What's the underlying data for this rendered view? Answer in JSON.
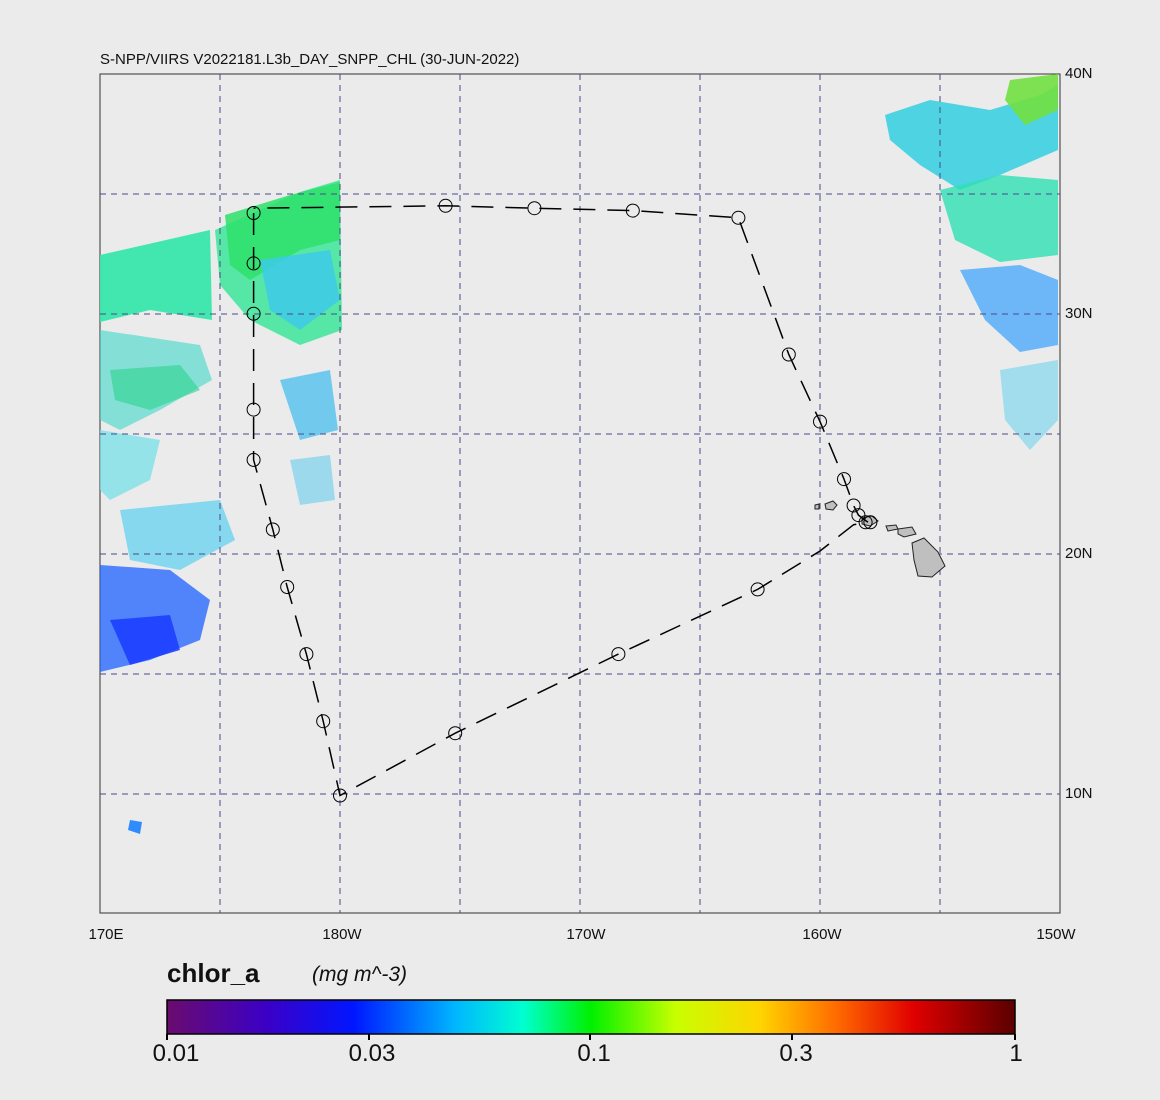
{
  "title": "S-NPP/VIIRS V2022181.L3b_DAY_SNPP_CHL (30-JUN-2022)",
  "lat_labels": [
    "40N",
    "30N",
    "20N",
    "10N"
  ],
  "lon_labels": [
    "170E",
    "180W",
    "170W",
    "160W",
    "150W"
  ],
  "colorbar": {
    "variable": "chlor_a",
    "units": "(mg m^-3)",
    "ticks": [
      "0.01",
      "0.03",
      "0.1",
      "0.3",
      "1"
    ],
    "colors": [
      "#6a0b6e",
      "#3a00c8",
      "#0016ff",
      "#00b6ff",
      "#00ffd0",
      "#00f000",
      "#c8ff00",
      "#ffd400",
      "#ff6a00",
      "#e00000",
      "#5a0000"
    ]
  },
  "map": {
    "background": "#ebebeb",
    "land_color": "#bfbfbf",
    "gridline_color": "#4a4a8a",
    "track_color": "#000000",
    "extent": {
      "lon_min": 170,
      "lon_max": 210,
      "lat_min": 5,
      "lat_max": 40
    },
    "track_stations": [
      [
        176.4,
        34.2
      ],
      [
        176.4,
        32.1
      ],
      [
        176.4,
        30.0
      ],
      [
        176.4,
        26.0
      ],
      [
        176.4,
        23.9
      ],
      [
        177.2,
        21.0
      ],
      [
        177.8,
        18.6
      ],
      [
        178.6,
        15.8
      ],
      [
        179.3,
        13.0
      ],
      [
        180.0,
        9.9
      ],
      [
        184.8,
        12.5
      ],
      [
        191.6,
        15.8
      ],
      [
        197.4,
        18.5
      ],
      [
        201.4,
        22.0
      ],
      [
        201.6,
        21.6
      ],
      [
        201.9,
        21.3
      ],
      [
        202.1,
        21.3
      ],
      [
        201.0,
        23.1
      ],
      [
        200.0,
        25.5
      ],
      [
        198.7,
        28.3
      ],
      [
        196.6,
        34.0
      ],
      [
        192.2,
        34.3
      ],
      [
        188.1,
        34.4
      ],
      [
        184.4,
        34.5
      ]
    ],
    "track_path": [
      [
        176.4,
        34.2
      ],
      [
        176.4,
        32.1
      ],
      [
        176.4,
        30.0
      ],
      [
        176.4,
        26.0
      ],
      [
        176.4,
        23.9
      ],
      [
        177.2,
        21.0
      ],
      [
        177.8,
        18.6
      ],
      [
        178.6,
        15.8
      ],
      [
        179.3,
        13.0
      ],
      [
        180.0,
        9.9
      ],
      [
        184.8,
        12.5
      ],
      [
        191.6,
        15.8
      ],
      [
        197.4,
        18.5
      ],
      [
        200.0,
        20.1
      ],
      [
        201.4,
        21.2
      ],
      [
        202.0,
        21.3
      ],
      [
        201.6,
        21.6
      ],
      [
        201.4,
        22.0
      ],
      [
        201.0,
        23.1
      ],
      [
        200.0,
        25.5
      ],
      [
        198.7,
        28.3
      ],
      [
        196.6,
        34.0
      ],
      [
        192.2,
        34.3
      ],
      [
        188.1,
        34.4
      ],
      [
        184.4,
        34.5
      ],
      [
        176.4,
        34.4
      ]
    ]
  }
}
